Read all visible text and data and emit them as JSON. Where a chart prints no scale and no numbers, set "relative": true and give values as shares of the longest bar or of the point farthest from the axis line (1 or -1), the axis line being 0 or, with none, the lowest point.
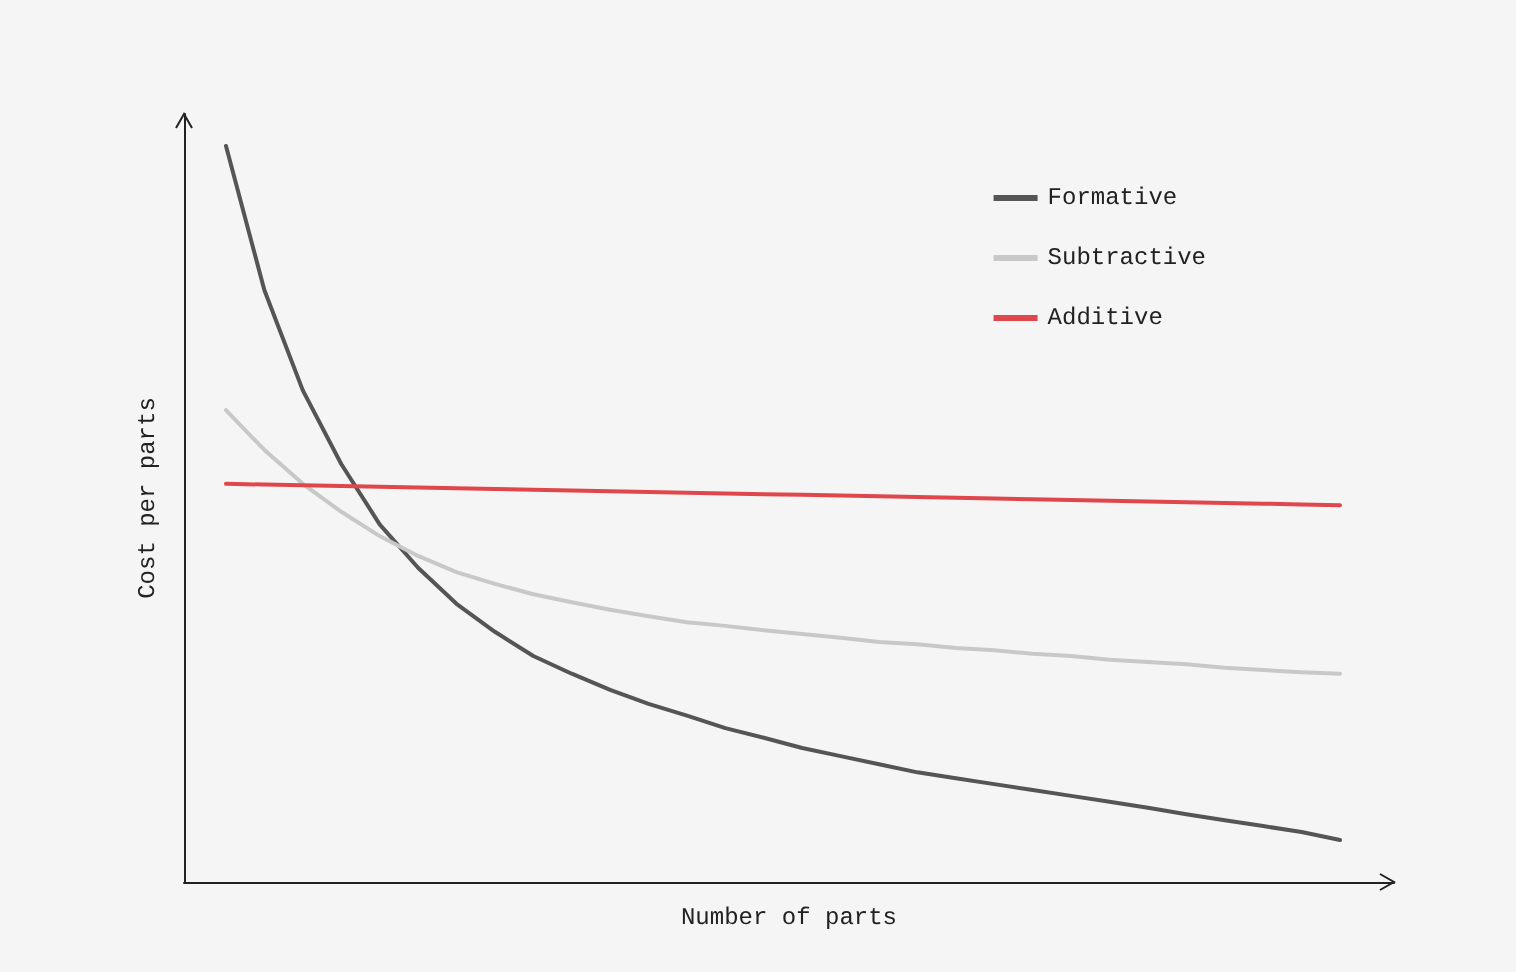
{
  "chart_data": {
    "type": "line",
    "relative": true,
    "xlabel": "Number of parts",
    "ylabel": "Cost per parts",
    "legend": "top right",
    "grid": false,
    "marker": "none",
    "line_style": "solid",
    "categories": [
      null,
      null,
      null,
      null,
      null,
      null,
      null,
      null,
      null,
      null,
      null,
      null,
      null,
      null,
      null,
      null,
      null,
      null,
      null,
      null,
      null,
      null,
      null,
      null,
      null,
      null,
      null,
      null,
      null,
      null
    ],
    "series": [
      {
        "name": "Formative",
        "color": "#555555",
        "values": [
          1.0,
          0.804,
          0.668,
          0.568,
          0.486,
          0.427,
          0.378,
          0.34,
          0.307,
          0.283,
          0.261,
          0.242,
          0.226,
          0.209,
          0.196,
          0.182,
          0.171,
          0.16,
          0.149,
          0.141,
          0.133,
          0.125,
          0.117,
          0.109,
          0.101,
          0.092,
          0.084,
          0.076,
          0.068,
          0.057
        ]
      },
      {
        "name": "Subtractive",
        "color": "#c8c8c8",
        "values": [
          0.641,
          0.587,
          0.541,
          0.503,
          0.47,
          0.443,
          0.421,
          0.405,
          0.391,
          0.38,
          0.37,
          0.361,
          0.353,
          0.348,
          0.342,
          0.337,
          0.332,
          0.326,
          0.323,
          0.318,
          0.315,
          0.31,
          0.307,
          0.302,
          0.299,
          0.296,
          0.291,
          0.288,
          0.285,
          0.283
        ]
      },
      {
        "name": "Additive",
        "color": "#e0474c",
        "values": [
          0.541,
          0.54,
          0.539,
          0.538,
          0.537,
          0.536,
          0.535,
          0.534,
          0.533,
          0.532,
          0.531,
          0.53,
          0.529,
          0.528,
          0.527,
          0.526,
          0.525,
          0.524,
          0.523,
          0.522,
          0.521,
          0.52,
          0.519,
          0.518,
          0.517,
          0.516,
          0.515,
          0.514,
          0.513,
          0.512
        ]
      }
    ]
  }
}
